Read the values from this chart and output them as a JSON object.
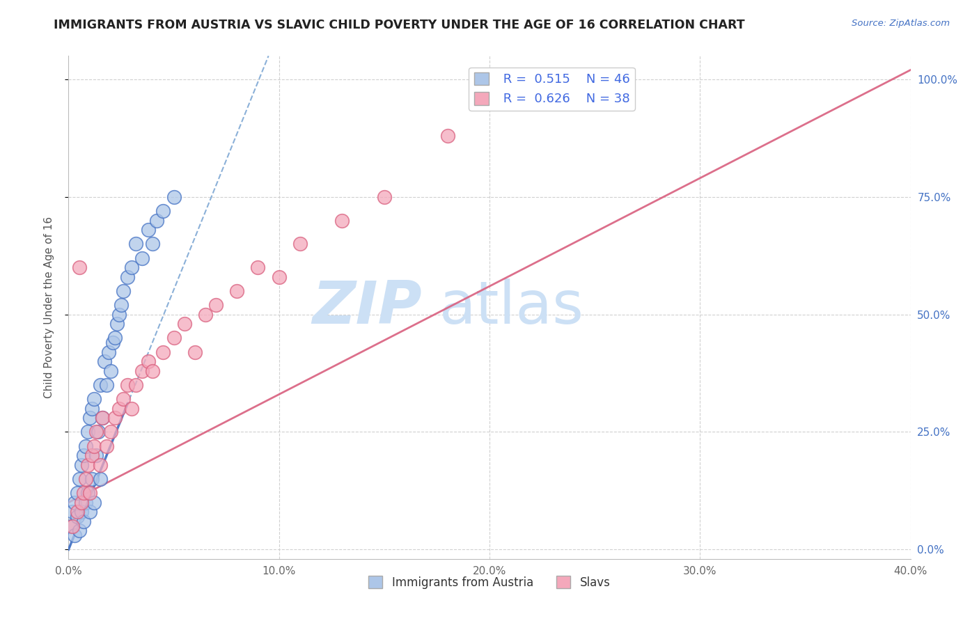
{
  "title": "IMMIGRANTS FROM AUSTRIA VS SLAVIC CHILD POVERTY UNDER THE AGE OF 16 CORRELATION CHART",
  "source_text": "Source: ZipAtlas.com",
  "ylabel": "Child Poverty Under the Age of 16",
  "xlim": [
    0.0,
    0.4
  ],
  "ylim": [
    -0.02,
    1.05
  ],
  "xtick_labels": [
    "0.0%",
    "10.0%",
    "20.0%",
    "30.0%",
    "40.0%"
  ],
  "xtick_vals": [
    0.0,
    0.1,
    0.2,
    0.3,
    0.4
  ],
  "ytick_labels_right": [
    "100.0%",
    "75.0%",
    "50.0%",
    "25.0%",
    "0.0%"
  ],
  "ytick_vals": [
    1.0,
    0.75,
    0.5,
    0.25,
    0.0
  ],
  "austria_color": "#adc6e8",
  "austria_line_color": "#4472c4",
  "slavic_color": "#f4a8bb",
  "slavic_line_color": "#d95f7e",
  "legend_value_color": "#4169e1",
  "R_austria": 0.515,
  "N_austria": 46,
  "R_slavic": 0.626,
  "N_slavic": 38,
  "watermark_color": "#cce0f5",
  "grid_color": "#d0d0d0",
  "title_color": "#222222",
  "source_color": "#4472c4",
  "austria_scatter_x": [
    0.001,
    0.002,
    0.003,
    0.003,
    0.004,
    0.004,
    0.005,
    0.005,
    0.006,
    0.006,
    0.007,
    0.007,
    0.008,
    0.008,
    0.009,
    0.009,
    0.01,
    0.01,
    0.011,
    0.011,
    0.012,
    0.012,
    0.013,
    0.014,
    0.015,
    0.015,
    0.016,
    0.017,
    0.018,
    0.019,
    0.02,
    0.021,
    0.022,
    0.023,
    0.024,
    0.025,
    0.026,
    0.028,
    0.03,
    0.032,
    0.035,
    0.038,
    0.04,
    0.042,
    0.045,
    0.05
  ],
  "austria_scatter_y": [
    0.05,
    0.08,
    0.03,
    0.1,
    0.07,
    0.12,
    0.04,
    0.15,
    0.08,
    0.18,
    0.06,
    0.2,
    0.1,
    0.22,
    0.12,
    0.25,
    0.08,
    0.28,
    0.15,
    0.3,
    0.1,
    0.32,
    0.2,
    0.25,
    0.15,
    0.35,
    0.28,
    0.4,
    0.35,
    0.42,
    0.38,
    0.44,
    0.45,
    0.48,
    0.5,
    0.52,
    0.55,
    0.58,
    0.6,
    0.65,
    0.62,
    0.68,
    0.65,
    0.7,
    0.72,
    0.75
  ],
  "slavic_scatter_x": [
    0.002,
    0.004,
    0.005,
    0.006,
    0.007,
    0.008,
    0.009,
    0.01,
    0.011,
    0.012,
    0.013,
    0.015,
    0.016,
    0.018,
    0.02,
    0.022,
    0.024,
    0.026,
    0.028,
    0.03,
    0.032,
    0.035,
    0.038,
    0.04,
    0.045,
    0.05,
    0.055,
    0.06,
    0.065,
    0.07,
    0.08,
    0.09,
    0.1,
    0.11,
    0.13,
    0.15,
    0.18,
    0.22
  ],
  "slavic_scatter_y": [
    0.05,
    0.08,
    0.6,
    0.1,
    0.12,
    0.15,
    0.18,
    0.12,
    0.2,
    0.22,
    0.25,
    0.18,
    0.28,
    0.22,
    0.25,
    0.28,
    0.3,
    0.32,
    0.35,
    0.3,
    0.35,
    0.38,
    0.4,
    0.38,
    0.42,
    0.45,
    0.48,
    0.42,
    0.5,
    0.52,
    0.55,
    0.6,
    0.58,
    0.65,
    0.7,
    0.75,
    0.88,
    1.0
  ],
  "austria_trend_x0": 0.0,
  "austria_trend_y0": 0.0,
  "austria_trend_x1": 0.095,
  "austria_trend_y1": 1.05,
  "slavic_trend_x0": 0.0,
  "slavic_trend_y0": 0.1,
  "slavic_trend_x1": 0.4,
  "slavic_trend_y1": 1.02
}
